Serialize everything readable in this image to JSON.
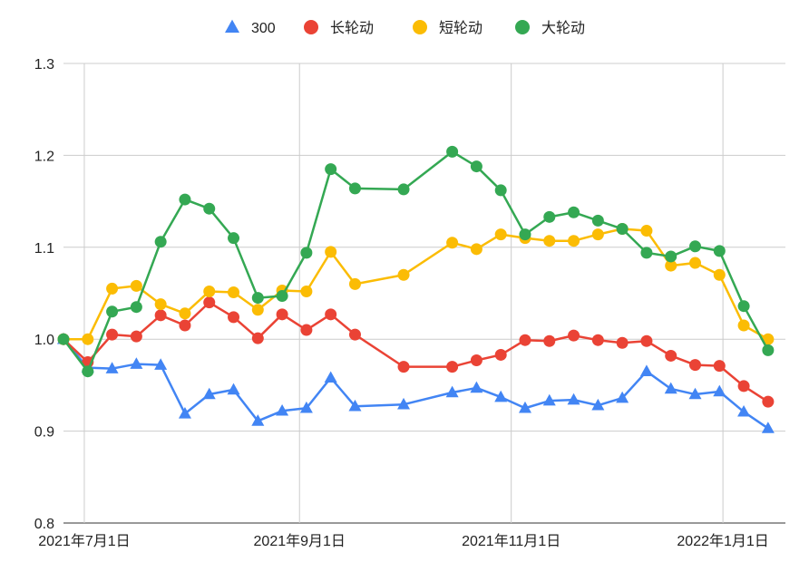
{
  "chart_data": {
    "type": "line",
    "legend_position": "top",
    "grid": true,
    "ylim": [
      0.8,
      1.3
    ],
    "yticks": [
      "0.8",
      "0.9",
      "1.0",
      "1.1",
      "1.2",
      "1.3"
    ],
    "xticks": [
      {
        "label": "2021年7月1日",
        "date": "2021-07-01"
      },
      {
        "label": "2021年9月1日",
        "date": "2021-09-01"
      },
      {
        "label": "2021年11月1日",
        "date": "2021-11-01"
      },
      {
        "label": "2022年1月1日",
        "date": "2022-01-01"
      }
    ],
    "xlim": [
      "2021-06-25",
      "2022-01-19"
    ],
    "x": [
      "2021-06-25",
      "2021-07-02",
      "2021-07-09",
      "2021-07-16",
      "2021-07-23",
      "2021-07-30",
      "2021-08-06",
      "2021-08-13",
      "2021-08-20",
      "2021-08-27",
      "2021-09-03",
      "2021-09-10",
      "2021-09-17",
      "2021-10-01",
      "2021-10-15",
      "2021-10-22",
      "2021-10-29",
      "2021-11-05",
      "2021-11-12",
      "2021-11-19",
      "2021-11-26",
      "2021-12-03",
      "2021-12-10",
      "2021-12-17",
      "2021-12-24",
      "2021-12-31",
      "2022-01-07",
      "2022-01-14"
    ],
    "series": [
      {
        "name": "300",
        "color": "#4285F4",
        "marker": "triangle",
        "values": [
          1.0,
          0.969,
          0.968,
          0.973,
          0.972,
          0.919,
          0.94,
          0.945,
          0.911,
          0.922,
          0.925,
          0.958,
          0.927,
          0.929,
          0.942,
          0.947,
          0.937,
          0.925,
          0.933,
          0.934,
          0.928,
          0.936,
          0.965,
          0.946,
          0.94,
          0.943,
          0.921,
          0.903
        ]
      },
      {
        "name": "长轮动",
        "color": "#EA4335",
        "marker": "circle",
        "values": [
          1.0,
          0.975,
          1.005,
          1.003,
          1.026,
          1.015,
          1.04,
          1.024,
          1.001,
          1.027,
          1.01,
          1.027,
          1.005,
          0.97,
          0.97,
          0.977,
          0.983,
          0.999,
          0.998,
          1.004,
          0.999,
          0.996,
          0.998,
          0.982,
          0.972,
          0.971,
          0.949,
          0.932
        ]
      },
      {
        "name": "短轮动",
        "color": "#FBBC04",
        "marker": "circle",
        "values": [
          1.0,
          1.0,
          1.055,
          1.058,
          1.038,
          1.028,
          1.052,
          1.051,
          1.032,
          1.053,
          1.052,
          1.095,
          1.06,
          1.07,
          1.105,
          1.098,
          1.114,
          1.11,
          1.107,
          1.107,
          1.114,
          1.12,
          1.118,
          1.08,
          1.083,
          1.07,
          1.015,
          1.0
        ]
      },
      {
        "name": "大轮动",
        "color": "#34A853",
        "marker": "circle",
        "values": [
          1.0,
          0.965,
          1.03,
          1.035,
          1.106,
          1.152,
          1.142,
          1.11,
          1.045,
          1.047,
          1.094,
          1.185,
          1.164,
          1.163,
          1.204,
          1.188,
          1.162,
          1.114,
          1.133,
          1.138,
          1.129,
          1.12,
          1.094,
          1.09,
          1.101,
          1.096,
          1.036,
          0.988
        ]
      }
    ]
  }
}
